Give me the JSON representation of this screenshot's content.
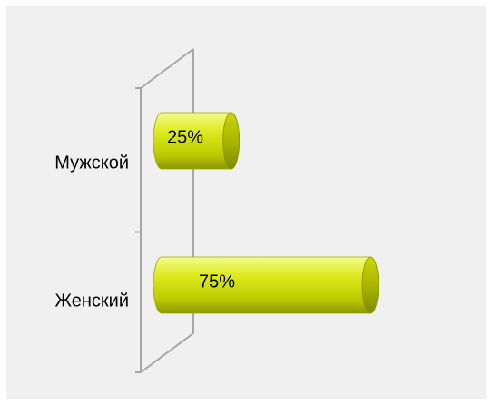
{
  "chart_data": {
    "type": "bar",
    "orientation": "horizontal",
    "style": "3d-cylinder",
    "categories": [
      "Мужской",
      "Женский"
    ],
    "values": [
      25,
      75
    ],
    "data_labels": [
      "25%",
      "75%"
    ],
    "title": "",
    "xlabel": "",
    "ylabel": "",
    "xlim": [
      0,
      100
    ],
    "grid": false,
    "legend": "none",
    "colors": {
      "background": "#f0f0f0",
      "bar_light": "#e8f24a",
      "bar_mid": "#c8d800",
      "bar_dark": "#8c9700",
      "axis": "#a6a6a6"
    }
  }
}
